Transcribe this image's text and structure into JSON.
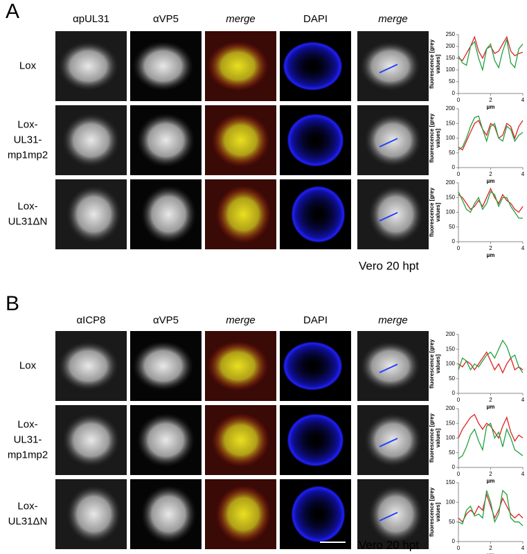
{
  "panels": [
    {
      "label": "A",
      "columns": [
        "αpUL31",
        "αVP5",
        "merge",
        "DAPI",
        "merge"
      ],
      "rows": [
        [
          "Lox"
        ],
        [
          "Lox-",
          "UL31-",
          "mp1mp2"
        ],
        [
          "Lox-",
          "UL31ΔN"
        ]
      ],
      "footer": "Vero 20 hpt",
      "charts": [
        {
          "type": "line",
          "ylabel": [
            "fluorescence [grey",
            "values]"
          ],
          "xlabel": "µm",
          "x": [
            0,
            0.25,
            0.5,
            0.75,
            1,
            1.25,
            1.5,
            1.75,
            2,
            2.25,
            2.5,
            2.75,
            3,
            3.25,
            3.5,
            3.75,
            4
          ],
          "xlim": [
            0,
            4
          ],
          "xticks": [
            0,
            2,
            4
          ],
          "ylim": [
            0,
            250
          ],
          "yticks": [
            0,
            50,
            100,
            150,
            200,
            250
          ],
          "series": [
            {
              "color": "#e02020",
              "values": [
                150,
                140,
                170,
                200,
                240,
                180,
                150,
                190,
                200,
                170,
                180,
                210,
                240,
                180,
                160,
                170,
                175
              ]
            },
            {
              "color": "#20a040",
              "values": [
                160,
                130,
                120,
                200,
                220,
                150,
                100,
                190,
                210,
                140,
                110,
                180,
                230,
                130,
                110,
                190,
                210
              ]
            }
          ]
        },
        {
          "type": "line",
          "ylabel": [
            "fluorescence [grey",
            "values]"
          ],
          "xlabel": "µm",
          "x": [
            0,
            0.25,
            0.5,
            0.75,
            1,
            1.25,
            1.5,
            1.75,
            2,
            2.25,
            2.5,
            2.75,
            3,
            3.25,
            3.5,
            3.75,
            4
          ],
          "xlim": [
            0,
            4
          ],
          "xticks": [
            0,
            2,
            4
          ],
          "ylim": [
            0,
            200
          ],
          "yticks": [
            0,
            50,
            100,
            150,
            200
          ],
          "series": [
            {
              "color": "#e02020",
              "values": [
                70,
                60,
                90,
                120,
                150,
                160,
                130,
                110,
                150,
                140,
                100,
                110,
                150,
                140,
                100,
                140,
                160
              ]
            },
            {
              "color": "#20a040",
              "values": [
                60,
                70,
                100,
                140,
                170,
                175,
                130,
                90,
                140,
                150,
                100,
                90,
                140,
                130,
                90,
                110,
                120
              ]
            }
          ]
        },
        {
          "type": "line",
          "ylabel": [
            "fluorescence [grey",
            "values]"
          ],
          "xlabel": "µm",
          "x": [
            0,
            0.25,
            0.5,
            0.75,
            1,
            1.25,
            1.5,
            1.75,
            2,
            2.25,
            2.5,
            2.75,
            3,
            3.25,
            3.5,
            3.75,
            4
          ],
          "xlim": [
            0,
            4
          ],
          "xticks": [
            0,
            2,
            4
          ],
          "ylim": [
            0,
            200
          ],
          "yticks": [
            0,
            50,
            100,
            150,
            200
          ],
          "series": [
            {
              "color": "#e02020",
              "values": [
                160,
                150,
                130,
                110,
                120,
                140,
                120,
                150,
                180,
                150,
                130,
                160,
                140,
                130,
                110,
                100,
                120
              ]
            },
            {
              "color": "#20a040",
              "values": [
                170,
                140,
                110,
                100,
                130,
                150,
                110,
                130,
                170,
                160,
                120,
                150,
                150,
                120,
                100,
                80,
                80
              ]
            }
          ]
        }
      ]
    },
    {
      "label": "B",
      "columns": [
        "αICP8",
        "αVP5",
        "merge",
        "DAPI",
        "merge"
      ],
      "rows": [
        [
          "Lox"
        ],
        [
          "Lox-",
          "UL31-",
          "mp1mp2"
        ],
        [
          "Lox-",
          "UL31ΔN"
        ]
      ],
      "footer": "Vero 20 hpt",
      "charts": [
        {
          "type": "line",
          "ylabel": [
            "fluorescence [grey",
            "values]"
          ],
          "xlabel": "µm",
          "x": [
            0,
            0.25,
            0.5,
            0.75,
            1,
            1.25,
            1.5,
            1.75,
            2,
            2.25,
            2.5,
            2.75,
            3,
            3.25,
            3.5,
            3.75,
            4
          ],
          "xlim": [
            0,
            4
          ],
          "xticks": [
            0,
            2,
            4
          ],
          "ylim": [
            0,
            200
          ],
          "yticks": [
            0,
            50,
            100,
            150,
            200
          ],
          "series": [
            {
              "color": "#e02020",
              "values": [
                100,
                90,
                110,
                100,
                80,
                100,
                120,
                140,
                110,
                80,
                100,
                70,
                100,
                120,
                80,
                90,
                80
              ]
            },
            {
              "color": "#20a040",
              "values": [
                80,
                120,
                110,
                80,
                100,
                90,
                110,
                130,
                140,
                120,
                150,
                180,
                160,
                120,
                130,
                90,
                70
              ]
            }
          ]
        },
        {
          "type": "line",
          "ylabel": [
            "fluorescence [grey",
            "values]"
          ],
          "xlabel": "µm",
          "x": [
            0,
            0.25,
            0.5,
            0.75,
            1,
            1.25,
            1.5,
            1.75,
            2,
            2.25,
            2.5,
            2.75,
            3,
            3.25,
            3.5,
            3.75,
            4
          ],
          "xlim": [
            0,
            4
          ],
          "xticks": [
            0,
            2,
            4
          ],
          "ylim": [
            0,
            200
          ],
          "yticks": [
            0,
            50,
            100,
            150,
            200
          ],
          "series": [
            {
              "color": "#e02020",
              "values": [
                100,
                130,
                150,
                170,
                180,
                150,
                130,
                150,
                140,
                120,
                100,
                140,
                170,
                120,
                90,
                110,
                100
              ]
            },
            {
              "color": "#20a040",
              "values": [
                30,
                40,
                70,
                110,
                130,
                90,
                60,
                140,
                150,
                100,
                120,
                70,
                130,
                100,
                60,
                50,
                40
              ]
            }
          ]
        },
        {
          "type": "line",
          "ylabel": [
            "fluorescence [grey",
            "values]"
          ],
          "xlabel": "µm",
          "x": [
            0,
            0.25,
            0.5,
            0.75,
            1,
            1.25,
            1.5,
            1.75,
            2,
            2.25,
            2.5,
            2.75,
            3,
            3.25,
            3.5,
            3.75,
            4
          ],
          "xlim": [
            0,
            4
          ],
          "xticks": [
            0,
            2,
            4
          ],
          "ylim": [
            0,
            150
          ],
          "yticks": [
            0,
            50,
            100,
            150
          ],
          "series": [
            {
              "color": "#e02020",
              "values": [
                60,
                50,
                70,
                80,
                70,
                90,
                80,
                120,
                90,
                60,
                80,
                110,
                90,
                70,
                60,
                70,
                60
              ]
            },
            {
              "color": "#20a040",
              "values": [
                50,
                45,
                80,
                90,
                65,
                70,
                60,
                130,
                100,
                50,
                70,
                130,
                120,
                60,
                50,
                50,
                40
              ]
            }
          ]
        }
      ]
    }
  ]
}
